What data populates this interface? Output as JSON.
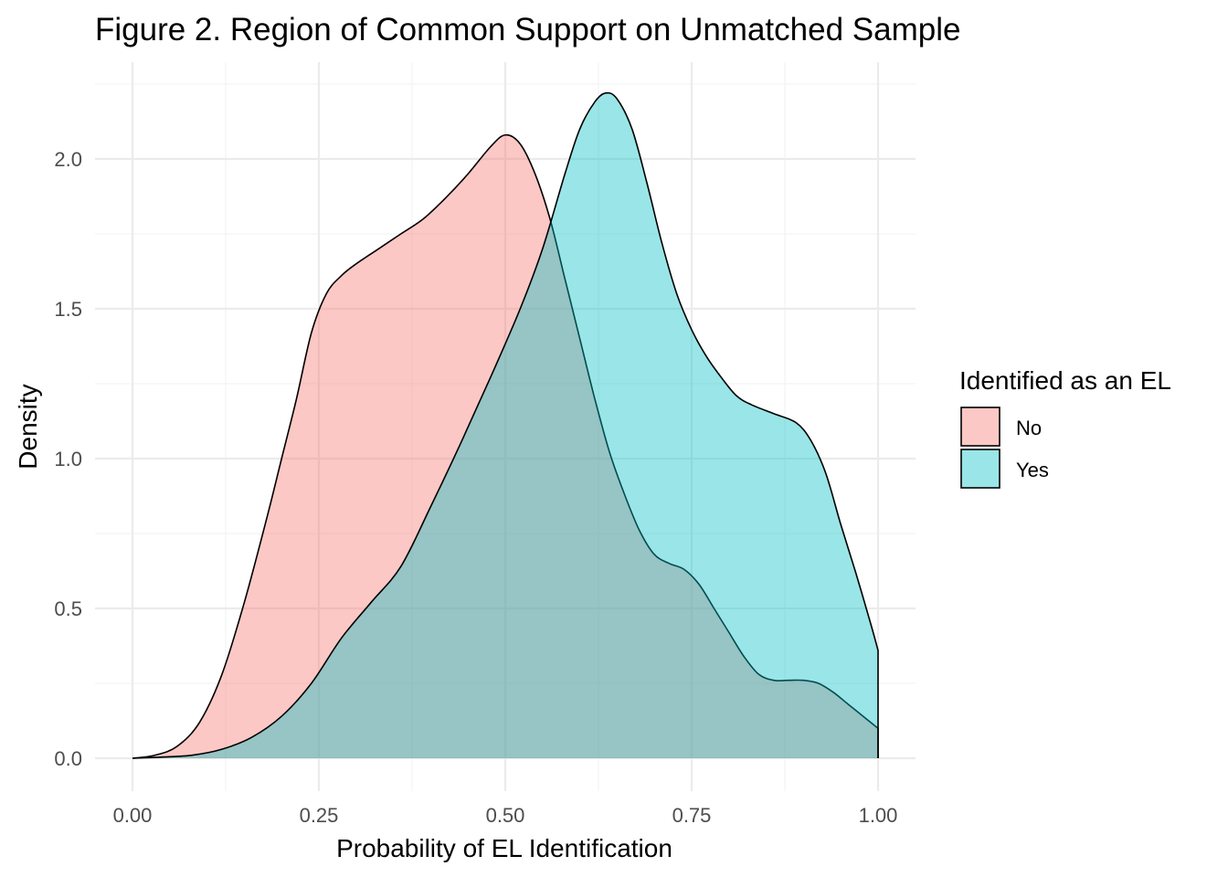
{
  "chart_data": {
    "type": "area",
    "subtype": "density",
    "title": "Figure 2. Region of Common Support on Unmatched Sample",
    "xlabel": "Probability of EL Identification",
    "ylabel": "Density",
    "xlim": [
      0.0,
      1.0
    ],
    "ylim": [
      0.0,
      2.25
    ],
    "x_ticks": [
      0.0,
      0.25,
      0.5,
      0.75,
      1.0
    ],
    "x_tick_labels": [
      "0.00",
      "0.25",
      "0.50",
      "0.75",
      "1.00"
    ],
    "y_ticks": [
      0.0,
      0.5,
      1.0,
      1.5,
      2.0
    ],
    "y_tick_labels": [
      "0.0",
      "0.5",
      "1.0",
      "1.5",
      "2.0"
    ],
    "grid": true,
    "legend": {
      "title": "Identified as an EL",
      "position": "right"
    },
    "series": [
      {
        "name": "No",
        "color": "#F8766D",
        "opacity": 0.4,
        "points": [
          [
            0.0,
            0.0
          ],
          [
            0.03,
            0.01
          ],
          [
            0.06,
            0.04
          ],
          [
            0.09,
            0.12
          ],
          [
            0.12,
            0.28
          ],
          [
            0.15,
            0.52
          ],
          [
            0.18,
            0.8
          ],
          [
            0.2,
            1.0
          ],
          [
            0.22,
            1.2
          ],
          [
            0.24,
            1.42
          ],
          [
            0.26,
            1.55
          ],
          [
            0.28,
            1.61
          ],
          [
            0.3,
            1.65
          ],
          [
            0.33,
            1.7
          ],
          [
            0.36,
            1.75
          ],
          [
            0.39,
            1.8
          ],
          [
            0.42,
            1.87
          ],
          [
            0.45,
            1.95
          ],
          [
            0.48,
            2.04
          ],
          [
            0.5,
            2.08
          ],
          [
            0.52,
            2.05
          ],
          [
            0.54,
            1.95
          ],
          [
            0.56,
            1.8
          ],
          [
            0.58,
            1.6
          ],
          [
            0.6,
            1.4
          ],
          [
            0.62,
            1.2
          ],
          [
            0.64,
            1.02
          ],
          [
            0.66,
            0.88
          ],
          [
            0.68,
            0.76
          ],
          [
            0.7,
            0.68
          ],
          [
            0.72,
            0.65
          ],
          [
            0.74,
            0.63
          ],
          [
            0.76,
            0.58
          ],
          [
            0.78,
            0.5
          ],
          [
            0.8,
            0.42
          ],
          [
            0.82,
            0.34
          ],
          [
            0.84,
            0.28
          ],
          [
            0.86,
            0.26
          ],
          [
            0.88,
            0.26
          ],
          [
            0.9,
            0.26
          ],
          [
            0.92,
            0.25
          ],
          [
            0.94,
            0.22
          ],
          [
            0.96,
            0.18
          ],
          [
            0.98,
            0.14
          ],
          [
            1.0,
            0.1
          ]
        ]
      },
      {
        "name": "Yes",
        "color": "#00BFC4",
        "opacity": 0.4,
        "points": [
          [
            0.0,
            0.0
          ],
          [
            0.04,
            0.004
          ],
          [
            0.08,
            0.01
          ],
          [
            0.12,
            0.03
          ],
          [
            0.16,
            0.07
          ],
          [
            0.2,
            0.14
          ],
          [
            0.24,
            0.25
          ],
          [
            0.28,
            0.4
          ],
          [
            0.32,
            0.52
          ],
          [
            0.36,
            0.64
          ],
          [
            0.4,
            0.84
          ],
          [
            0.44,
            1.05
          ],
          [
            0.48,
            1.27
          ],
          [
            0.52,
            1.5
          ],
          [
            0.55,
            1.7
          ],
          [
            0.58,
            1.95
          ],
          [
            0.6,
            2.1
          ],
          [
            0.62,
            2.19
          ],
          [
            0.635,
            2.22
          ],
          [
            0.65,
            2.2
          ],
          [
            0.67,
            2.1
          ],
          [
            0.69,
            1.92
          ],
          [
            0.71,
            1.72
          ],
          [
            0.73,
            1.55
          ],
          [
            0.75,
            1.43
          ],
          [
            0.77,
            1.34
          ],
          [
            0.79,
            1.27
          ],
          [
            0.81,
            1.21
          ],
          [
            0.83,
            1.18
          ],
          [
            0.86,
            1.15
          ],
          [
            0.89,
            1.12
          ],
          [
            0.91,
            1.06
          ],
          [
            0.93,
            0.95
          ],
          [
            0.95,
            0.78
          ],
          [
            0.97,
            0.62
          ],
          [
            0.99,
            0.45
          ],
          [
            1.0,
            0.36
          ]
        ]
      }
    ]
  }
}
